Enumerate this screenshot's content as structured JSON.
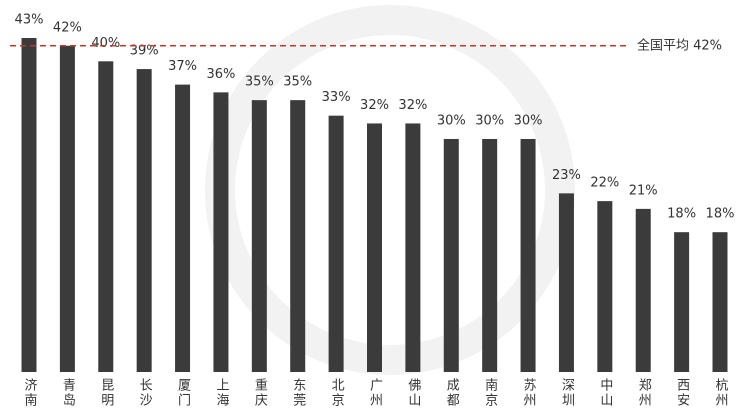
{
  "chart_data": {
    "type": "bar",
    "categories": [
      "济南",
      "青岛",
      "昆明",
      "长沙",
      "厦门",
      "上海",
      "重庆",
      "东莞",
      "北京",
      "广州",
      "佛山",
      "成都",
      "南京",
      "苏州",
      "深圳",
      "中山",
      "郑州",
      "西安",
      "杭州"
    ],
    "values": [
      43,
      42,
      40,
      39,
      37,
      36,
      35,
      35,
      33,
      32,
      32,
      30,
      30,
      30,
      23,
      22,
      21,
      18,
      18
    ],
    "value_labels": [
      "43%",
      "42%",
      "40%",
      "39%",
      "37%",
      "36%",
      "35%",
      "35%",
      "33%",
      "32%",
      "32%",
      "30%",
      "30%",
      "30%",
      "23%",
      "22%",
      "21%",
      "18%",
      "18%"
    ],
    "color": "#3b3b3b",
    "average": {
      "value": 42,
      "label": "全国平均 42%",
      "color": "#c0392b"
    }
  }
}
